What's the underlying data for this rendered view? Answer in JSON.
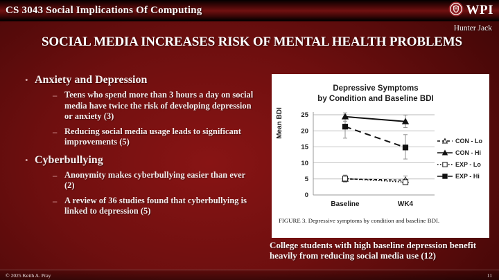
{
  "header": {
    "course": "CS 3043 Social Implications Of Computing",
    "logo_text": "WPI"
  },
  "author": "Hunter Jack",
  "title": "SOCIAL MEDIA INCREASES RISK OF MENTAL HEALTH PROBLEMS",
  "bullets": [
    {
      "label": "Anxiety and Depression",
      "sub": [
        "Teens who spend more than 3 hours a day on social media have twice the risk of developing depression or anxiety (3)",
        "Reducing social media usage leads to significant improvements (5)"
      ]
    },
    {
      "label": "Cyberbullying",
      "sub": [
        "Anonymity makes cyberbullying easier than ever (2)",
        "A review of 36 studies found that cyberbullying is linked to depression (5)"
      ]
    }
  ],
  "figure": {
    "caption": "FIGURE 3. Depressive symptoms by condition and baseline BDI."
  },
  "takeaway": "College students with high baseline depression benefit heavily from reducing social media use (12)",
  "footer": {
    "copyright": "© 2025 Keith A. Pray",
    "page": "11"
  },
  "chart_data": {
    "type": "line",
    "title": "Depressive Symptoms by Condition and Baseline BDI",
    "title_lines": [
      "Depressive Symptoms",
      "by Condition and Baseline BDI"
    ],
    "ylabel": "Mean BDI",
    "xlabel": "",
    "x_categories": [
      "Baseline",
      "WK4"
    ],
    "ylim": [
      0,
      25
    ],
    "yticks": [
      0,
      5,
      10,
      15,
      20,
      25
    ],
    "grid": true,
    "legend_position": "right",
    "series": [
      {
        "name": "CON - Lo",
        "values": [
          5.0,
          4.6
        ],
        "err": [
          [
            4.0,
            6.0
          ],
          [
            3.4,
            5.9
          ]
        ],
        "marker": "triangle-open",
        "line": "dashed"
      },
      {
        "name": "CON - Hi",
        "values": [
          24.4,
          22.9
        ],
        "err": [
          [
            23.0,
            25.6
          ],
          [
            21.0,
            24.9
          ]
        ],
        "marker": "triangle-filled",
        "line": "solid"
      },
      {
        "name": "EXP - Lo",
        "values": [
          5.1,
          4.0
        ],
        "err": [
          [
            4.2,
            6.2
          ],
          [
            3.2,
            4.9
          ]
        ],
        "marker": "square-open",
        "line": "dotted"
      },
      {
        "name": "EXP - Hi",
        "values": [
          21.3,
          14.8
        ],
        "err": [
          [
            17.7,
            25.0
          ],
          [
            11.2,
            18.8
          ]
        ],
        "marker": "square-filled",
        "line": "long-dash"
      }
    ]
  }
}
